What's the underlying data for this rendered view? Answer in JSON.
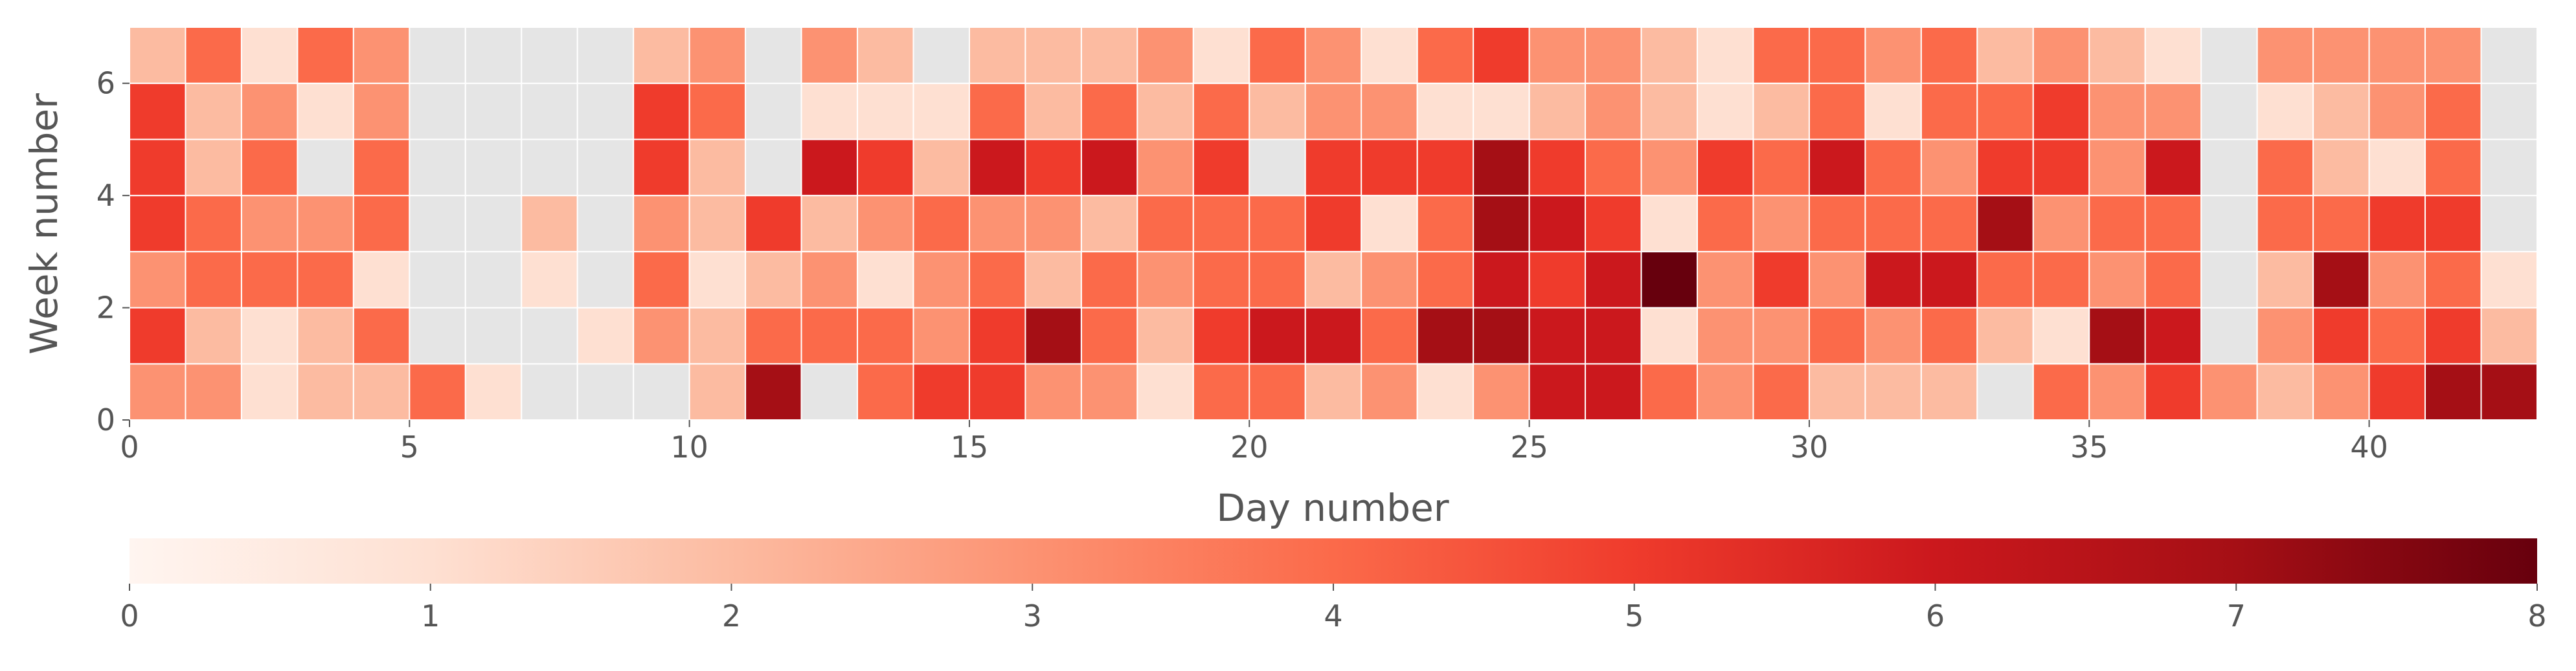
{
  "chart_data": {
    "type": "heatmap",
    "xlabel": "Day number",
    "ylabel": "Week number",
    "x_ticks": [
      "0",
      "5",
      "10",
      "15",
      "20",
      "25",
      "30",
      "35",
      "40"
    ],
    "y_ticks": [
      "0",
      "2",
      "4",
      "6"
    ],
    "xlim": [
      0,
      43
    ],
    "ylim": [
      0,
      7
    ],
    "colorbar": {
      "min": 0,
      "max": 8,
      "ticks": [
        "0",
        "1",
        "2",
        "3",
        "4",
        "5",
        "6",
        "7",
        "8"
      ],
      "colors": [
        "#fff5f0",
        "#fee0d2",
        "#fcbba1",
        "#fc9272",
        "#fb6a4a",
        "#ef3b2c",
        "#cb181d",
        "#a50f15",
        "#67000d"
      ]
    },
    "missing_color": "#e5e5e5",
    "grid": false,
    "rows": [
      [
        3,
        3,
        1,
        2,
        2,
        4,
        1,
        null,
        null,
        null,
        2,
        7,
        null,
        4,
        5,
        5,
        3,
        3,
        1,
        4,
        4,
        2,
        3,
        1,
        3,
        6,
        6,
        4,
        3,
        4,
        2,
        2,
        2,
        null,
        4,
        3,
        5,
        3,
        2,
        3,
        5,
        7,
        7
      ],
      [
        5,
        2,
        1,
        2,
        4,
        null,
        null,
        null,
        1,
        3,
        2,
        4,
        4,
        4,
        3,
        5,
        7,
        4,
        2,
        5,
        6,
        6,
        4,
        7,
        7,
        6,
        6,
        1,
        3,
        3,
        4,
        3,
        4,
        2,
        1,
        7,
        6,
        null,
        3,
        5,
        4,
        5,
        2
      ],
      [
        3,
        4,
        4,
        4,
        1,
        null,
        null,
        1,
        null,
        4,
        1,
        2,
        3,
        1,
        3,
        4,
        2,
        4,
        3,
        4,
        4,
        2,
        3,
        4,
        6,
        5,
        6,
        8,
        3,
        5,
        3,
        6,
        6,
        4,
        4,
        3,
        4,
        null,
        2,
        7,
        3,
        4,
        1
      ],
      [
        5,
        4,
        3,
        3,
        4,
        null,
        null,
        2,
        null,
        3,
        2,
        5,
        2,
        3,
        4,
        3,
        3,
        2,
        4,
        4,
        4,
        5,
        1,
        4,
        7,
        6,
        5,
        1,
        4,
        3,
        4,
        4,
        4,
        7,
        3,
        4,
        4,
        null,
        4,
        4,
        5,
        5,
        null
      ],
      [
        5,
        2,
        4,
        null,
        4,
        null,
        null,
        null,
        null,
        5,
        2,
        null,
        6,
        5,
        2,
        6,
        5,
        6,
        3,
        5,
        null,
        5,
        5,
        5,
        7,
        5,
        4,
        3,
        5,
        4,
        6,
        4,
        3,
        5,
        5,
        3,
        6,
        null,
        4,
        2,
        1,
        4,
        null
      ],
      [
        5,
        2,
        3,
        1,
        3,
        null,
        null,
        null,
        null,
        5,
        4,
        null,
        1,
        1,
        1,
        4,
        2,
        4,
        2,
        4,
        2,
        3,
        3,
        1,
        1,
        2,
        3,
        2,
        1,
        2,
        4,
        1,
        4,
        4,
        5,
        3,
        3,
        null,
        1,
        2,
        3,
        4,
        null
      ],
      [
        2,
        4,
        1,
        4,
        3,
        null,
        null,
        null,
        null,
        2,
        3,
        null,
        3,
        2,
        null,
        2,
        2,
        2,
        3,
        1,
        4,
        3,
        1,
        4,
        5,
        3,
        3,
        2,
        1,
        4,
        4,
        3,
        4,
        2,
        3,
        2,
        1,
        null,
        3,
        3,
        3,
        3,
        null
      ]
    ]
  }
}
